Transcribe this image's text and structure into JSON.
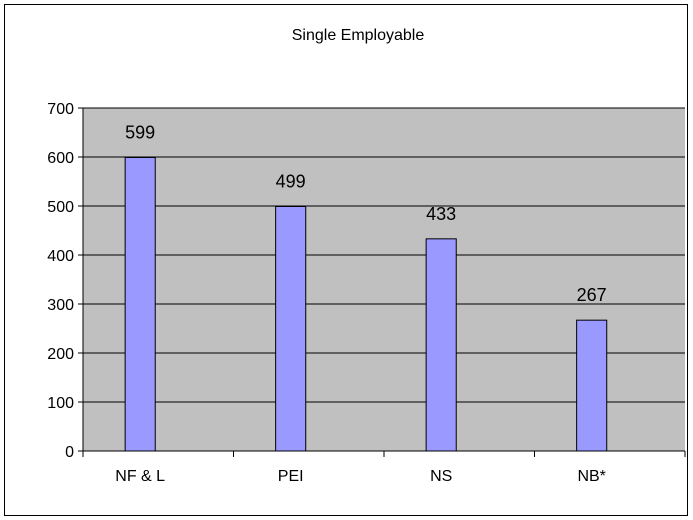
{
  "chart_data": {
    "type": "bar",
    "title": "Single Employable",
    "xlabel": "",
    "ylabel": "",
    "categories": [
      "NF & L",
      "PEI",
      "NS",
      "NB*"
    ],
    "values": [
      599,
      499,
      433,
      267
    ],
    "data_labels": [
      "599",
      "499",
      "433",
      "267"
    ],
    "ylim": [
      0,
      700
    ],
    "yticks": [
      0,
      100,
      200,
      300,
      400,
      500,
      600,
      700
    ],
    "grid": true,
    "legend": "none",
    "colors": {
      "bar": "#9999FF",
      "plot_background": "#C0C0C0",
      "gridline": "#000000",
      "border": "#000000"
    }
  }
}
